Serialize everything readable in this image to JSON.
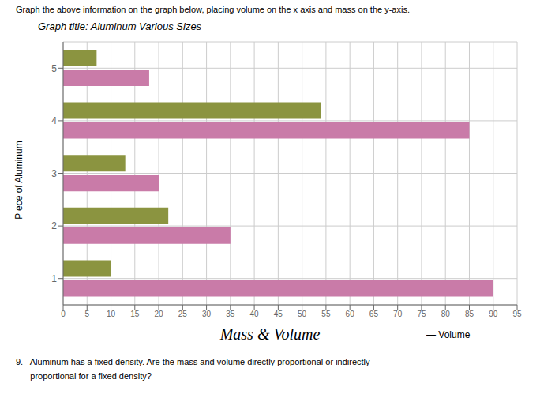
{
  "chart_data": {
    "type": "bar",
    "orientation": "horizontal",
    "title": "Graph title: Aluminum Various Sizes",
    "xlabel": "Mass & Volume",
    "ylabel": "Piece of Aluminum",
    "categories": [
      "1",
      "2",
      "3",
      "4",
      "5"
    ],
    "series": [
      {
        "color": "#8B9440",
        "values": [
          10,
          22,
          13,
          54,
          7
        ]
      },
      {
        "color": "#C97BA8",
        "values": [
          90,
          35,
          20,
          85,
          18
        ]
      }
    ],
    "xlim": [
      0,
      95
    ],
    "xticks": [
      0,
      5,
      10,
      15,
      20,
      25,
      30,
      35,
      40,
      45,
      50,
      55,
      60,
      65,
      70,
      75,
      80,
      85,
      90,
      95
    ],
    "grid": true,
    "annotations": [
      "Graph the above information on the graph below, placing volume on the x axis and mass on the y-axis.",
      "— Volume",
      "9.   Aluminum has a fixed density. Are the mass and volume directly proportional or indirectly",
      "      proportional for a fixed density?"
    ]
  }
}
